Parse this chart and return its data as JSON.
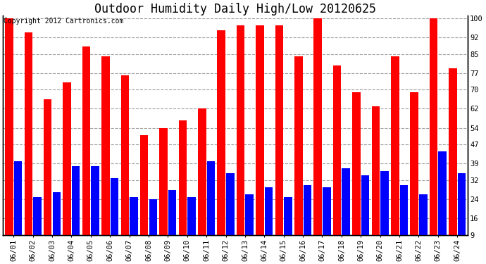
{
  "title": "Outdoor Humidity Daily High/Low 20120625",
  "copyright": "Copyright 2012 Cartronics.com",
  "dates": [
    "06/01",
    "06/02",
    "06/03",
    "06/04",
    "06/05",
    "06/06",
    "06/07",
    "06/08",
    "06/09",
    "06/10",
    "06/11",
    "06/12",
    "06/13",
    "06/14",
    "06/15",
    "06/16",
    "06/17",
    "06/18",
    "06/19",
    "06/20",
    "06/21",
    "06/22",
    "06/23",
    "06/24"
  ],
  "high": [
    100,
    94,
    66,
    73,
    88,
    84,
    76,
    51,
    54,
    57,
    62,
    95,
    97,
    97,
    97,
    84,
    100,
    80,
    69,
    63,
    84,
    69,
    100,
    79
  ],
  "low": [
    40,
    25,
    27,
    38,
    38,
    33,
    25,
    24,
    28,
    25,
    40,
    35,
    26,
    29,
    25,
    30,
    29,
    37,
    34,
    36,
    30,
    26,
    44,
    35
  ],
  "bar_color_high": "#ff0000",
  "bar_color_low": "#0000ff",
  "bg_color": "#ffffff",
  "plot_bg_color": "#ffffff",
  "grid_color": "#999999",
  "yticks": [
    9,
    16,
    24,
    32,
    39,
    47,
    54,
    62,
    70,
    77,
    85,
    92,
    100
  ],
  "ymin": 9,
  "ymax": 101,
  "title_fontsize": 12,
  "copyright_fontsize": 7,
  "tick_fontsize": 7.5,
  "bar_width": 0.42,
  "bar_gap": 0.04
}
